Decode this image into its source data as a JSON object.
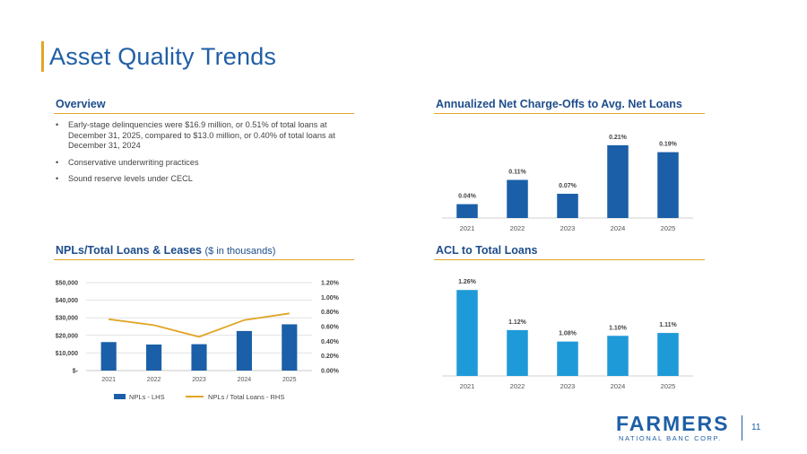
{
  "page": {
    "title": "Asset Quality Trends",
    "page_number": "11",
    "accent_color": "#e0a526",
    "brand_color": "#1f5fa6"
  },
  "overview": {
    "heading": "Overview",
    "bullets": [
      "Early-stage delinquencies were $16.9 million, or 0.51% of total loans at December 31, 2025, compared to $13.0 million, or 0.40% of total loans at December 31, 2024",
      "Conservative underwriting practices",
      "Sound reserve levels under CECL"
    ]
  },
  "logo": {
    "word": "FARMERS",
    "sub": "NATIONAL BANC CORP."
  },
  "chart_data": [
    {
      "id": "nco",
      "type": "bar",
      "title": "Annualized Net Charge-Offs to Avg. Net Loans",
      "categories": [
        "2021",
        "2022",
        "2023",
        "2024",
        "2025"
      ],
      "values": [
        0.04,
        0.11,
        0.07,
        0.21,
        0.19
      ],
      "data_labels": [
        "0.04%",
        "0.11%",
        "0.07%",
        "0.21%",
        "0.19%"
      ],
      "ylim": [
        0,
        0.22
      ],
      "color": "#1b5fa8",
      "grid": false
    },
    {
      "id": "npl",
      "type": "bar+line",
      "title": "NPLs/Total Loans & Leases",
      "subtitle": "($ in thousands)",
      "categories": [
        "2021",
        "2022",
        "2023",
        "2024",
        "2025"
      ],
      "series": [
        {
          "name": "NPLs - LHS",
          "type": "bar",
          "axis": "left",
          "values": [
            16200,
            14800,
            15000,
            22500,
            26300
          ],
          "color": "#1b5fa8"
        },
        {
          "name": "NPLs / Total Loans - RHS",
          "type": "line",
          "axis": "right",
          "values": [
            0.7,
            0.62,
            0.46,
            0.69,
            0.78
          ],
          "color": "#e0a526"
        }
      ],
      "left_axis": {
        "ticks": [
          0,
          10000,
          20000,
          30000,
          40000,
          50000
        ],
        "tick_labels": [
          "$-",
          "$10,000",
          "$20,000",
          "$30,000",
          "$40,000",
          "$50,000"
        ],
        "ylim": [
          0,
          50000
        ]
      },
      "right_axis": {
        "ticks": [
          0,
          0.2,
          0.4,
          0.6,
          0.8,
          1.0,
          1.2
        ],
        "tick_labels": [
          "0.00%",
          "0.20%",
          "0.40%",
          "0.60%",
          "0.80%",
          "1.00%",
          "1.20%"
        ],
        "ylim": [
          0,
          1.2
        ]
      },
      "grid": true,
      "legend": "bottom"
    },
    {
      "id": "acl",
      "type": "bar",
      "title": "ACL to Total Loans",
      "categories": [
        "2021",
        "2022",
        "2023",
        "2024",
        "2025"
      ],
      "values": [
        1.26,
        1.12,
        1.08,
        1.1,
        1.11
      ],
      "data_labels": [
        "1.26%",
        "1.12%",
        "1.08%",
        "1.10%",
        "1.11%"
      ],
      "ylim": [
        0.96,
        1.27
      ],
      "color": "#1f9ad8",
      "grid": false
    }
  ]
}
